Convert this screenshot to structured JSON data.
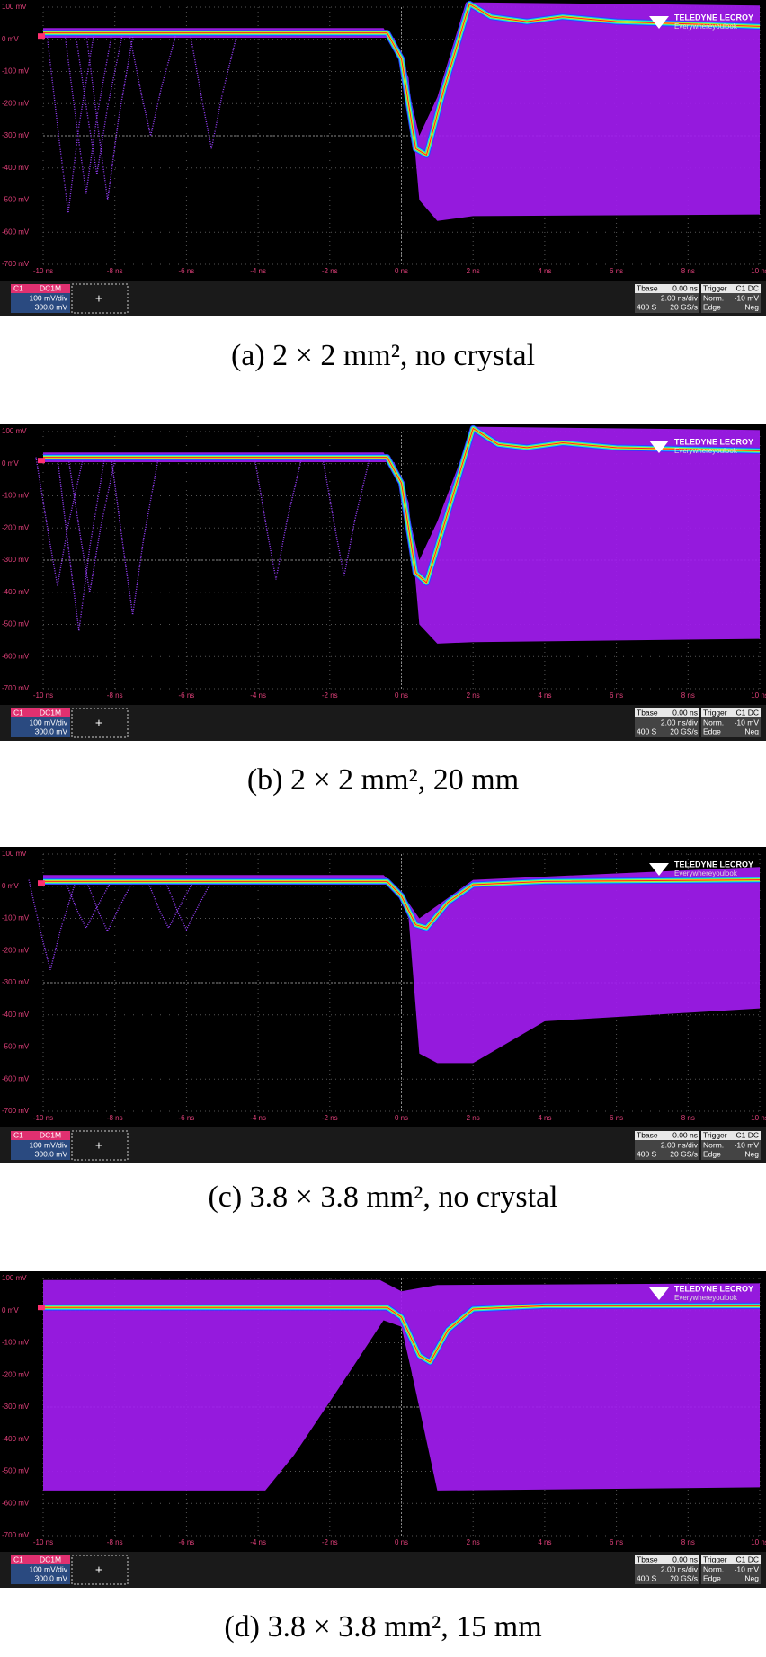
{
  "panels": [
    {
      "caption": "(a) 2 × 2 mm², no crystal"
    },
    {
      "caption": "(b) 2 × 2 mm², 20 mm"
    },
    {
      "caption": "(c) 3.8 × 3.8 mm², no crystal"
    },
    {
      "caption": "(d) 3.8 × 3.8 mm², 15 mm"
    }
  ],
  "axes": {
    "yticks": [
      "100 mV",
      "0 mV",
      "-100 mV",
      "-200 mV",
      "-300 mV",
      "-400 mV",
      "-500 mV",
      "-600 mV",
      "-700 mV"
    ],
    "xticks": [
      "-10 ns",
      "-8 ns",
      "-6 ns",
      "-4 ns",
      "-2 ns",
      "0 ns",
      "2 ns",
      "4 ns",
      "6 ns",
      "8 ns",
      "10 ns"
    ]
  },
  "scope": {
    "channel": "C1",
    "coupling": "DC1M",
    "vdiv": "100 mV/div",
    "offset": "300.0 mV",
    "cursor": "+",
    "tbase_label": "Tbase",
    "tbase_value": "0.00 ns",
    "tdiv": "2.00 ns/div",
    "samples": "400 S",
    "rate": "20 GS/s",
    "trigger_label": "Trigger",
    "trigger_source": "C1 DC",
    "trigger_mode": "Norm.",
    "trigger_level": "-10 mV",
    "trigger_type": "Edge",
    "trigger_slope": "Neg"
  },
  "logo": {
    "brand": "TELEDYNE LECROY",
    "tagline": "Everywhereyoulook"
  }
}
